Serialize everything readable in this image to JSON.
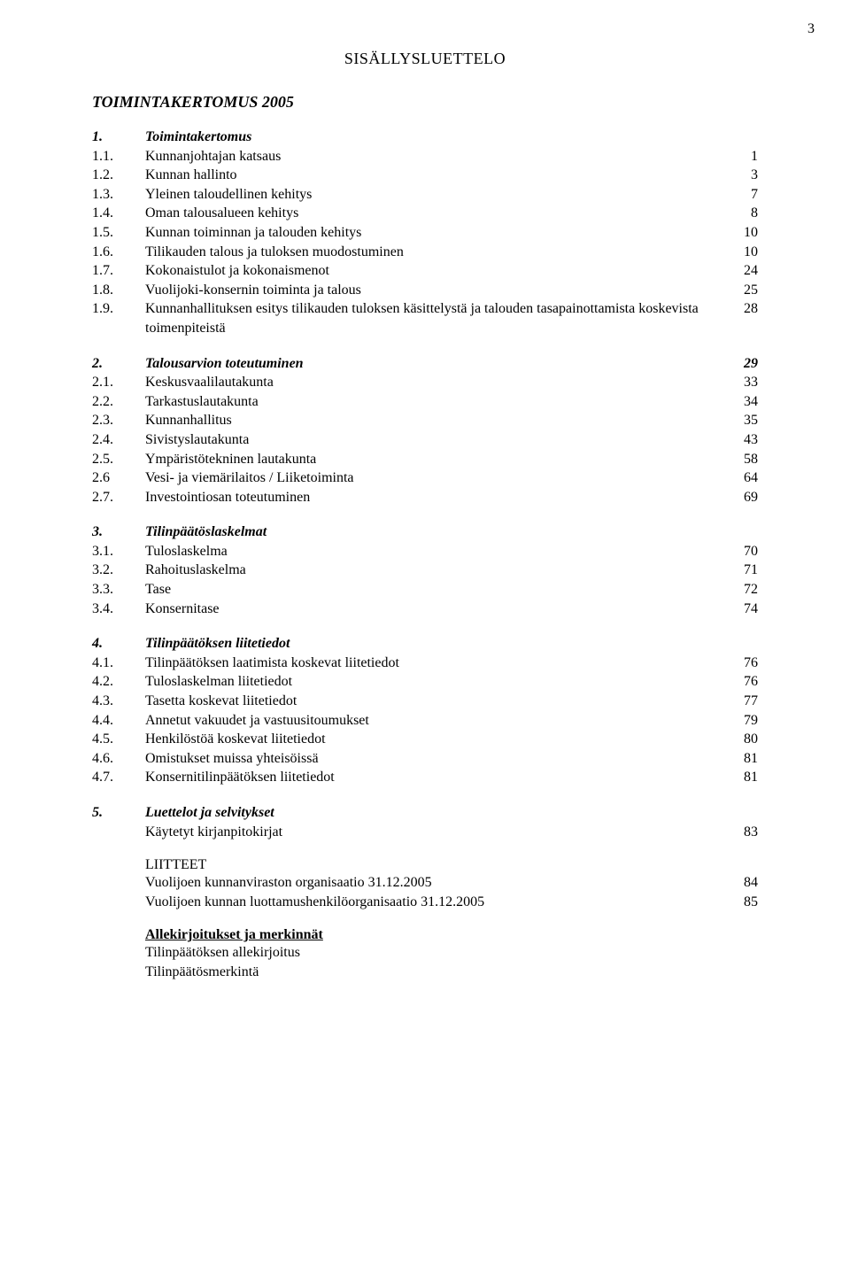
{
  "page_number": "3",
  "heading": "SISÄLLYSLUETTELO",
  "main_title": "TOIMINTAKERTOMUS 2005",
  "sections": [
    {
      "num": "1.",
      "title": "Toimintakertomus",
      "title_italic_bold": true,
      "page": "",
      "items": [
        {
          "num": "1.1.",
          "label": "Kunnanjohtajan katsaus",
          "page": "1"
        },
        {
          "num": "1.2.",
          "label": "Kunnan hallinto",
          "page": "3"
        },
        {
          "num": "1.3.",
          "label": "Yleinen taloudellinen kehitys",
          "page": "7"
        },
        {
          "num": "1.4.",
          "label": "Oman talousalueen kehitys",
          "page": "8"
        },
        {
          "num": "1.5.",
          "label": "Kunnan toiminnan ja talouden kehitys",
          "page": "10"
        },
        {
          "num": "1.6.",
          "label": "Tilikauden talous ja tuloksen muodostuminen",
          "page": "10"
        },
        {
          "num": "1.7.",
          "label": "Kokonaistulot ja kokonaismenot",
          "page": "24"
        },
        {
          "num": "1.8.",
          "label": "Vuolijoki-konsernin toiminta ja talous",
          "page": "25"
        },
        {
          "num": "1.9.",
          "label": "Kunnanhallituksen esitys tilikauden tuloksen käsittelystä ja talouden tasapainottamista koskevista toimenpiteistä",
          "page": "28"
        }
      ]
    },
    {
      "num": "2.",
      "title": "Talousarvion toteutuminen",
      "title_italic_bold": true,
      "page": "29",
      "items": [
        {
          "num": "2.1.",
          "label": "Keskusvaalilautakunta",
          "page": "33"
        },
        {
          "num": "2.2.",
          "label": "Tarkastuslautakunta",
          "page": "34"
        },
        {
          "num": "2.3.",
          "label": "Kunnanhallitus",
          "page": "35"
        },
        {
          "num": "2.4.",
          "label": "Sivistyslautakunta",
          "page": "43"
        },
        {
          "num": "2.5.",
          "label": "Ympäristötekninen lautakunta",
          "page": "58"
        },
        {
          "num": "2.6",
          "label": "Vesi- ja viemärilaitos / Liiketoiminta",
          "page": "64"
        },
        {
          "num": "2.7.",
          "label": "Investointiosan toteutuminen",
          "page": "69"
        }
      ]
    },
    {
      "num": "3.",
      "title": "Tilinpäätöslaskelmat",
      "title_italic_bold": true,
      "page": "",
      "items": [
        {
          "num": "3.1.",
          "label": "Tuloslaskelma",
          "page": "70"
        },
        {
          "num": "3.2.",
          "label": "Rahoituslaskelma",
          "page": "71"
        },
        {
          "num": "3.3.",
          "label": "Tase",
          "page": "72"
        },
        {
          "num": "3.4.",
          "label": "Konsernitase",
          "page": "74"
        }
      ]
    },
    {
      "num": "4.",
      "title": "Tilinpäätöksen liitetiedot",
      "title_italic_bold": true,
      "page": "",
      "items": [
        {
          "num": "4.1.",
          "label": "Tilinpäätöksen laatimista koskevat liitetiedot",
          "page": "76"
        },
        {
          "num": "4.2.",
          "label": "Tuloslaskelman liitetiedot",
          "page": "76"
        },
        {
          "num": "4.3.",
          "label": "Tasetta koskevat liitetiedot",
          "page": "77"
        },
        {
          "num": "4.4.",
          "label": "Annetut vakuudet ja vastuusitoumukset",
          "page": "79"
        },
        {
          "num": "4.5.",
          "label": "Henkilöstöä koskevat liitetiedot",
          "page": "80"
        },
        {
          "num": "4.6.",
          "label": "Omistukset muissa yhteisöissä",
          "page": "81"
        },
        {
          "num": "4.7.",
          "label": "Konsernitilinpäätöksen liitetiedot",
          "page": "81"
        }
      ]
    },
    {
      "num": "5.",
      "title": "Luettelot ja selvitykset",
      "title_italic_bold": true,
      "page": "",
      "items": [
        {
          "num": "",
          "label": "Käytetyt kirjanpitokirjat",
          "page": "83"
        }
      ]
    }
  ],
  "appendix": {
    "heading": "LIITTEET",
    "items": [
      {
        "label": "Vuolijoen kunnanviraston organisaatio 31.12.2005",
        "page": "84"
      },
      {
        "label": "Vuolijoen kunnan luottamushenkilöorganisaatio 31.12.2005",
        "page": "85"
      }
    ]
  },
  "signatures": {
    "heading": "Allekirjoitukset ja merkinnät",
    "lines": [
      "Tilinpäätöksen allekirjoitus",
      "Tilinpäätösmerkintä"
    ]
  }
}
